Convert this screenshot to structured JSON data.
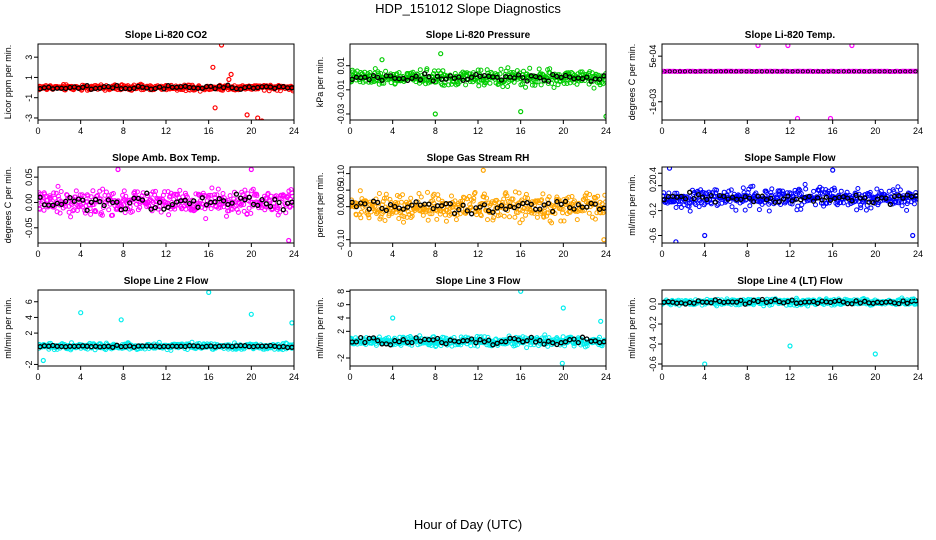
{
  "title": "HDP_151012  Slope Diagnostics",
  "x_axis_label": "Hour of Day (UTC)",
  "chart_data": [
    {
      "id": "p1",
      "type": "scatter",
      "title": "Slope Li-820 CO2",
      "ylabel": "Licor ppm per min.",
      "xlim": [
        0,
        24
      ],
      "ylim": [
        -3.2,
        4.3
      ],
      "yticks": [
        {
          "v": -3,
          "label": "-3"
        },
        {
          "v": -1,
          "label": "-1"
        },
        {
          "v": 1,
          "label": "1"
        },
        {
          "v": 3,
          "label": "3"
        }
      ],
      "pattern": {
        "mode": "band",
        "color": "#ff0000",
        "spread": 0.4,
        "blackSpread": 0.3,
        "center": 0
      },
      "outliers": [
        [
          16.4,
          2.0
        ],
        [
          16.6,
          -2.0
        ],
        [
          17.2,
          4.2
        ],
        [
          17.9,
          0.8
        ],
        [
          18.1,
          1.3
        ],
        [
          19.6,
          -2.7
        ],
        [
          20.6,
          -3.0
        ],
        [
          21.0,
          -3.3
        ]
      ]
    },
    {
      "id": "p2",
      "type": "scatter",
      "title": "Slope Li-820 Pressure",
      "ylabel": "kPa per min.",
      "xlim": [
        0,
        24
      ],
      "ylim": [
        -0.035,
        0.028
      ],
      "yticks": [
        {
          "v": -0.03,
          "label": "-0.03"
        },
        {
          "v": -0.01,
          "label": "-0.01"
        },
        {
          "v": 0.01,
          "label": "0.01"
        }
      ],
      "pattern": {
        "mode": "band",
        "color": "#00cc00",
        "spread": 0.009,
        "blackSpread": 0.004,
        "center": 0
      },
      "outliers": [
        [
          8.0,
          -0.03
        ],
        [
          16.0,
          -0.028
        ],
        [
          24.0,
          -0.032
        ],
        [
          8.5,
          0.02
        ],
        [
          3.0,
          0.015
        ]
      ]
    },
    {
      "id": "p3",
      "type": "scatter",
      "title": "Slope Li-820 Temp.",
      "ylabel": "degrees C per min.",
      "xlim": [
        0,
        24
      ],
      "ylim": [
        -0.0016,
        0.0009
      ],
      "yticks": [
        {
          "v": -0.001,
          "label": "-1e-03"
        },
        {
          "v": 0.0005,
          "label": "5e-04"
        }
      ],
      "pattern": {
        "mode": "line",
        "color": "#ff00ff",
        "spread": 1e-05,
        "blackSpread": 0.0,
        "center": 0
      },
      "outliers": [
        [
          9.0,
          0.00085
        ],
        [
          11.8,
          0.00085
        ],
        [
          12.7,
          -0.00155
        ],
        [
          15.8,
          -0.00155
        ],
        [
          17.8,
          0.00085
        ],
        [
          0.0,
          0.0
        ]
      ]
    },
    {
      "id": "p4",
      "type": "scatter",
      "title": "Slope Amb. Box Temp.",
      "ylabel": "degrees C per min.",
      "xlim": [
        0,
        24
      ],
      "ylim": [
        -0.08,
        0.07
      ],
      "yticks": [
        {
          "v": -0.05,
          "label": "-0.05"
        },
        {
          "v": 0.0,
          "label": "0.00"
        },
        {
          "v": 0.05,
          "label": "0.05"
        }
      ],
      "pattern": {
        "mode": "band",
        "color": "#ff00ff",
        "spread": 0.035,
        "blackSpread": 0.025,
        "center": 0
      },
      "outliers": [
        [
          23.5,
          -0.075
        ],
        [
          20.0,
          0.065
        ],
        [
          7.5,
          0.065
        ]
      ]
    },
    {
      "id": "p5",
      "type": "scatter",
      "title": "Slope Gas Stream RH",
      "ylabel": "percent per min.",
      "xlim": [
        0,
        24
      ],
      "ylim": [
        -0.11,
        0.12
      ],
      "yticks": [
        {
          "v": -0.1,
          "label": "-0.10"
        },
        {
          "v": 0.0,
          "label": "0.00"
        },
        {
          "v": 0.05,
          "label": "0.05"
        },
        {
          "v": 0.1,
          "label": "0.10"
        }
      ],
      "pattern": {
        "mode": "band",
        "color": "#ffa500",
        "spread": 0.06,
        "blackSpread": 0.03,
        "center": 0
      },
      "outliers": [
        [
          23.8,
          -0.1
        ],
        [
          12.5,
          0.11
        ]
      ]
    },
    {
      "id": "p6",
      "type": "scatter",
      "title": "Slope Sample Flow",
      "ylabel": "ml/min per min.",
      "xlim": [
        0,
        24
      ],
      "ylim": [
        -0.72,
        0.5
      ],
      "yticks": [
        {
          "v": -0.6,
          "label": "-0.6"
        },
        {
          "v": -0.2,
          "label": "-0.2"
        },
        {
          "v": 0.2,
          "label": "0.2"
        },
        {
          "v": 0.4,
          "label": "0.4"
        }
      ],
      "pattern": {
        "mode": "band",
        "color": "#0000ff",
        "spread": 0.25,
        "blackSpread": 0.12,
        "center": 0
      },
      "outliers": [
        [
          0.7,
          0.48
        ],
        [
          16.0,
          0.45
        ],
        [
          1.3,
          -0.7
        ],
        [
          4.0,
          -0.6
        ],
        [
          23.5,
          -0.6
        ]
      ]
    },
    {
      "id": "p7",
      "type": "scatter",
      "title": "Slope Line 2 Flow",
      "ylabel": "ml/min per min.",
      "xlim": [
        0,
        24
      ],
      "ylim": [
        -2.2,
        7.5
      ],
      "yticks": [
        {
          "v": -2,
          "label": "-2"
        },
        {
          "v": 2,
          "label": "2"
        },
        {
          "v": 4,
          "label": "4"
        },
        {
          "v": 6,
          "label": "6"
        }
      ],
      "pattern": {
        "mode": "band",
        "color": "#00eeee",
        "spread": 0.6,
        "blackSpread": 0.2,
        "center": 0.3
      },
      "outliers": [
        [
          4.0,
          4.6
        ],
        [
          7.8,
          3.7
        ],
        [
          16.0,
          7.2
        ],
        [
          20.0,
          4.4
        ],
        [
          23.8,
          3.3
        ],
        [
          0.5,
          -1.5
        ]
      ]
    },
    {
      "id": "p8",
      "type": "scatter",
      "title": "Slope Line 3 Flow",
      "ylabel": "ml/min per min.",
      "xlim": [
        0,
        24
      ],
      "ylim": [
        -3.2,
        8.2
      ],
      "yticks": [
        {
          "v": -2,
          "label": "-2"
        },
        {
          "v": 2,
          "label": "2"
        },
        {
          "v": 4,
          "label": "4"
        },
        {
          "v": 6,
          "label": "6"
        },
        {
          "v": 8,
          "label": "8"
        }
      ],
      "pattern": {
        "mode": "band",
        "color": "#00eeee",
        "spread": 1.1,
        "blackSpread": 0.8,
        "center": 0.5
      },
      "outliers": [
        [
          16.0,
          8.0
        ],
        [
          20.0,
          5.5
        ],
        [
          23.5,
          3.5
        ],
        [
          4.0,
          4.0
        ],
        [
          19.9,
          -2.8
        ]
      ]
    },
    {
      "id": "p9",
      "type": "scatter",
      "title": "Slope Line 4 (LT) Flow",
      "ylabel": "ml/min per min.",
      "xlim": [
        0,
        24
      ],
      "ylim": [
        -0.62,
        0.14
      ],
      "yticks": [
        {
          "v": -0.6,
          "label": "-0.6"
        },
        {
          "v": -0.4,
          "label": "-0.4"
        },
        {
          "v": -0.2,
          "label": "-0.2"
        },
        {
          "v": 0.0,
          "label": "0.0"
        }
      ],
      "pattern": {
        "mode": "band",
        "color": "#00eeee",
        "spread": 0.045,
        "blackSpread": 0.03,
        "center": 0.02
      },
      "outliers": [
        [
          4.0,
          -0.6
        ],
        [
          12.0,
          -0.42
        ],
        [
          20.0,
          -0.5
        ],
        [
          23.6,
          0.05
        ]
      ]
    }
  ],
  "x_ticks": [
    "0",
    "4",
    "8",
    "12",
    "16",
    "20",
    "24"
  ]
}
